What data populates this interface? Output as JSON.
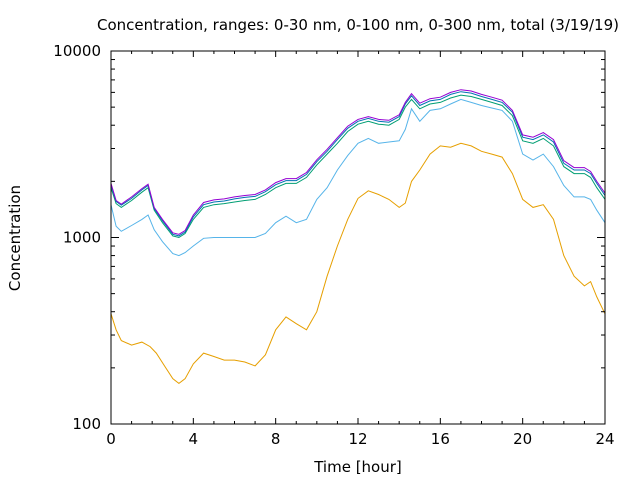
{
  "chart_data": {
    "type": "line",
    "title": "Concentration, ranges: 0-30 nm, 0-100 nm, 0-300 nm, total (3/19/19)",
    "xlabel": "Time [hour]",
    "ylabel": "Concentration",
    "xlim": [
      0,
      24
    ],
    "ylim": [
      100,
      10000
    ],
    "yscale": "log",
    "grid": false,
    "legend": "none",
    "xticks": [
      0,
      4,
      8,
      12,
      16,
      20,
      24
    ],
    "yticks": [
      100,
      1000,
      10000
    ],
    "xtick_labels": [
      "0",
      "4",
      "8",
      "12",
      "16",
      "20",
      "24"
    ],
    "ytick_labels": [
      "100",
      "1000",
      "10000"
    ],
    "series": [
      {
        "color": "#e69f00",
        "x": [
          0,
          0.25,
          0.5,
          1,
          1.5,
          1.9,
          2.2,
          2.6,
          3,
          3.3,
          3.6,
          4,
          4.5,
          5,
          5.5,
          6,
          6.5,
          7,
          7.5,
          8,
          8.5,
          9,
          9.5,
          10,
          10.5,
          11,
          11.5,
          12,
          12.5,
          13,
          13.5,
          14,
          14.3,
          14.6,
          15,
          15.5,
          16,
          16.5,
          17,
          17.5,
          18,
          18.5,
          19,
          19.5,
          20,
          20.5,
          21,
          21.5,
          22,
          22.5,
          23,
          23.3,
          23.6,
          24
        ],
        "y": [
          390,
          320,
          280,
          265,
          275,
          260,
          240,
          205,
          175,
          165,
          175,
          210,
          240,
          230,
          220,
          220,
          215,
          205,
          235,
          320,
          375,
          345,
          320,
          400,
          620,
          900,
          1250,
          1620,
          1780,
          1700,
          1600,
          1450,
          1530,
          2000,
          2300,
          2800,
          3100,
          3050,
          3200,
          3100,
          2900,
          2800,
          2700,
          2200,
          1600,
          1450,
          1500,
          1250,
          800,
          620,
          550,
          580,
          480,
          390
        ]
      },
      {
        "color": "#56b4e9",
        "x": [
          0,
          0.25,
          0.5,
          1,
          1.5,
          1.8,
          2.1,
          2.5,
          3,
          3.3,
          3.6,
          4,
          4.5,
          5,
          5.5,
          6,
          6.5,
          7,
          7.5,
          8,
          8.5,
          9,
          9.5,
          10,
          10.5,
          11,
          11.5,
          12,
          12.5,
          13,
          13.5,
          14,
          14.3,
          14.6,
          15,
          15.5,
          16,
          16.5,
          17,
          17.5,
          18,
          18.5,
          19,
          19.5,
          20,
          20.5,
          21,
          21.5,
          22,
          22.5,
          23,
          23.3,
          23.6,
          24
        ],
        "y": [
          1500,
          1150,
          1080,
          1160,
          1250,
          1320,
          1100,
          950,
          820,
          800,
          830,
          900,
          990,
          1000,
          1000,
          1000,
          1000,
          1000,
          1050,
          1200,
          1300,
          1200,
          1250,
          1600,
          1850,
          2300,
          2750,
          3200,
          3400,
          3200,
          3250,
          3300,
          3800,
          4900,
          4200,
          4800,
          4900,
          5200,
          5500,
          5300,
          5100,
          4950,
          4800,
          4200,
          2800,
          2600,
          2800,
          2400,
          1900,
          1650,
          1650,
          1600,
          1400,
          1200
        ]
      },
      {
        "color": "#009e73",
        "x": [
          0,
          0.25,
          0.5,
          1,
          1.5,
          1.8,
          2.1,
          2.5,
          3,
          3.3,
          3.6,
          4,
          4.5,
          5,
          5.5,
          6,
          6.5,
          7,
          7.5,
          8,
          8.5,
          9,
          9.5,
          10,
          10.5,
          11,
          11.5,
          12,
          12.5,
          13,
          13.5,
          14,
          14.3,
          14.6,
          15,
          15.5,
          16,
          16.5,
          17,
          17.5,
          18,
          18.5,
          19,
          19.5,
          20,
          20.5,
          21,
          21.5,
          22,
          22.5,
          23,
          23.3,
          23.6,
          24
        ],
        "y": [
          1850,
          1520,
          1450,
          1580,
          1750,
          1850,
          1400,
          1200,
          1020,
          1000,
          1050,
          1250,
          1450,
          1500,
          1520,
          1550,
          1580,
          1600,
          1700,
          1850,
          1950,
          1950,
          2100,
          2450,
          2800,
          3200,
          3700,
          4050,
          4200,
          4050,
          4000,
          4300,
          5000,
          5500,
          4900,
          5200,
          5300,
          5600,
          5800,
          5700,
          5500,
          5300,
          5100,
          4500,
          3300,
          3200,
          3400,
          3100,
          2400,
          2200,
          2200,
          2100,
          1850,
          1600
        ]
      },
      {
        "color": "#0072b2",
        "x": [
          0,
          0.25,
          0.5,
          1,
          1.5,
          1.8,
          2.1,
          2.5,
          3,
          3.3,
          3.6,
          4,
          4.5,
          5,
          5.5,
          6,
          6.5,
          7,
          7.5,
          8,
          8.5,
          9,
          9.5,
          10,
          10.5,
          11,
          11.5,
          12,
          12.5,
          13,
          13.5,
          14,
          14.3,
          14.6,
          15,
          15.5,
          16,
          16.5,
          17,
          17.5,
          18,
          18.5,
          19,
          19.5,
          20,
          20.5,
          21,
          21.5,
          22,
          22.5,
          23,
          23.3,
          23.6,
          24
        ],
        "y": [
          1920,
          1560,
          1490,
          1620,
          1800,
          1900,
          1430,
          1230,
          1040,
          1020,
          1070,
          1290,
          1500,
          1550,
          1570,
          1610,
          1640,
          1660,
          1760,
          1920,
          2020,
          2020,
          2180,
          2550,
          2900,
          3350,
          3850,
          4200,
          4350,
          4200,
          4150,
          4450,
          5200,
          5750,
          5100,
          5400,
          5500,
          5850,
          6050,
          5950,
          5700,
          5500,
          5300,
          4700,
          3450,
          3350,
          3550,
          3250,
          2500,
          2300,
          2300,
          2200,
          1950,
          1680
        ]
      },
      {
        "color": "#9400d3",
        "x": [
          0,
          0.25,
          0.5,
          1,
          1.5,
          1.8,
          2.1,
          2.5,
          3,
          3.3,
          3.6,
          4,
          4.5,
          5,
          5.5,
          6,
          6.5,
          7,
          7.5,
          8,
          8.5,
          9,
          9.5,
          10,
          10.5,
          11,
          11.5,
          12,
          12.5,
          13,
          13.5,
          14,
          14.3,
          14.6,
          15,
          15.5,
          16,
          16.5,
          17,
          17.5,
          18,
          18.5,
          19,
          19.5,
          20,
          20.5,
          21,
          21.5,
          22,
          22.5,
          23,
          23.3,
          23.6,
          24
        ],
        "y": [
          1950,
          1580,
          1510,
          1650,
          1830,
          1930,
          1450,
          1250,
          1060,
          1040,
          1090,
          1320,
          1540,
          1590,
          1610,
          1650,
          1680,
          1700,
          1800,
          1970,
          2070,
          2070,
          2230,
          2610,
          2970,
          3430,
          3950,
          4300,
          4450,
          4300,
          4250,
          4550,
          5300,
          5900,
          5250,
          5550,
          5650,
          6000,
          6200,
          6100,
          5850,
          5650,
          5450,
          4800,
          3550,
          3450,
          3650,
          3350,
          2580,
          2370,
          2370,
          2260,
          2000,
          1730
        ]
      }
    ]
  }
}
